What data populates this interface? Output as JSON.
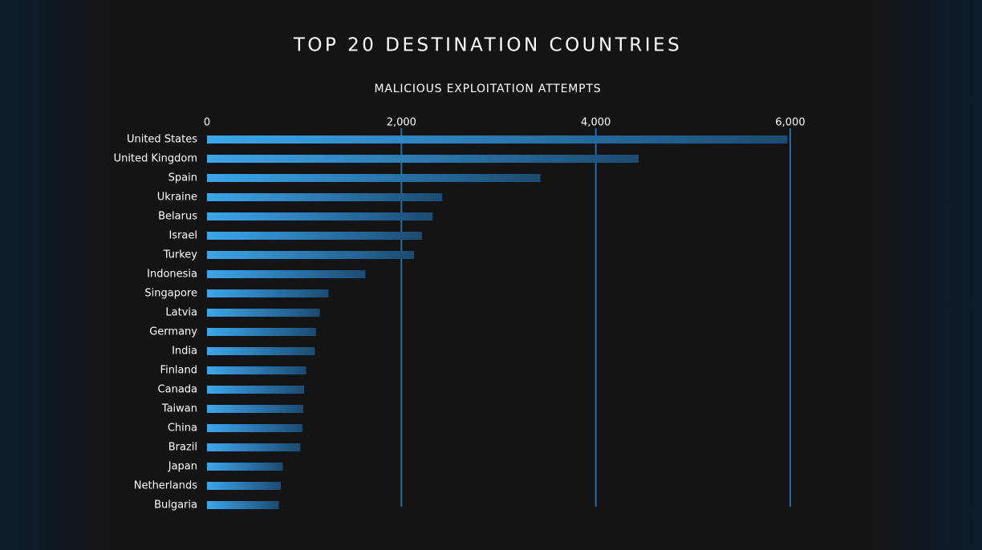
{
  "chart_data": {
    "type": "hbar",
    "title": "TOP 20 DESTINATION COUNTRIES",
    "subtitle": "MALICIOUS EXPLOITATION ATTEMPTS",
    "categories": [
      "United States",
      "United Kingdom",
      "Spain",
      "Ukraine",
      "Belarus",
      "Israel",
      "Turkey",
      "Indonesia",
      "Singapore",
      "Latvia",
      "Germany",
      "India",
      "Finland",
      "Canada",
      "Taiwan",
      "China",
      "Brazil",
      "Japan",
      "Netherlands",
      "Bulgaria"
    ],
    "values": [
      5970,
      4440,
      3430,
      2420,
      2320,
      2210,
      2130,
      1630,
      1250,
      1160,
      1120,
      1110,
      1020,
      1000,
      990,
      980,
      960,
      780,
      760,
      740
    ],
    "color": [
      "#3ca6ec",
      "#1b4b72"
    ],
    "xlim": [
      0,
      6000
    ],
    "xticks": [
      0,
      {
        "value": 2000,
        "label": "2,000"
      },
      {
        "value": 4000,
        "label": "4,000"
      },
      {
        "value": 6000,
        "label": "6,000"
      }
    ],
    "grid": true,
    "grid_color": "#1f6ea6"
  }
}
